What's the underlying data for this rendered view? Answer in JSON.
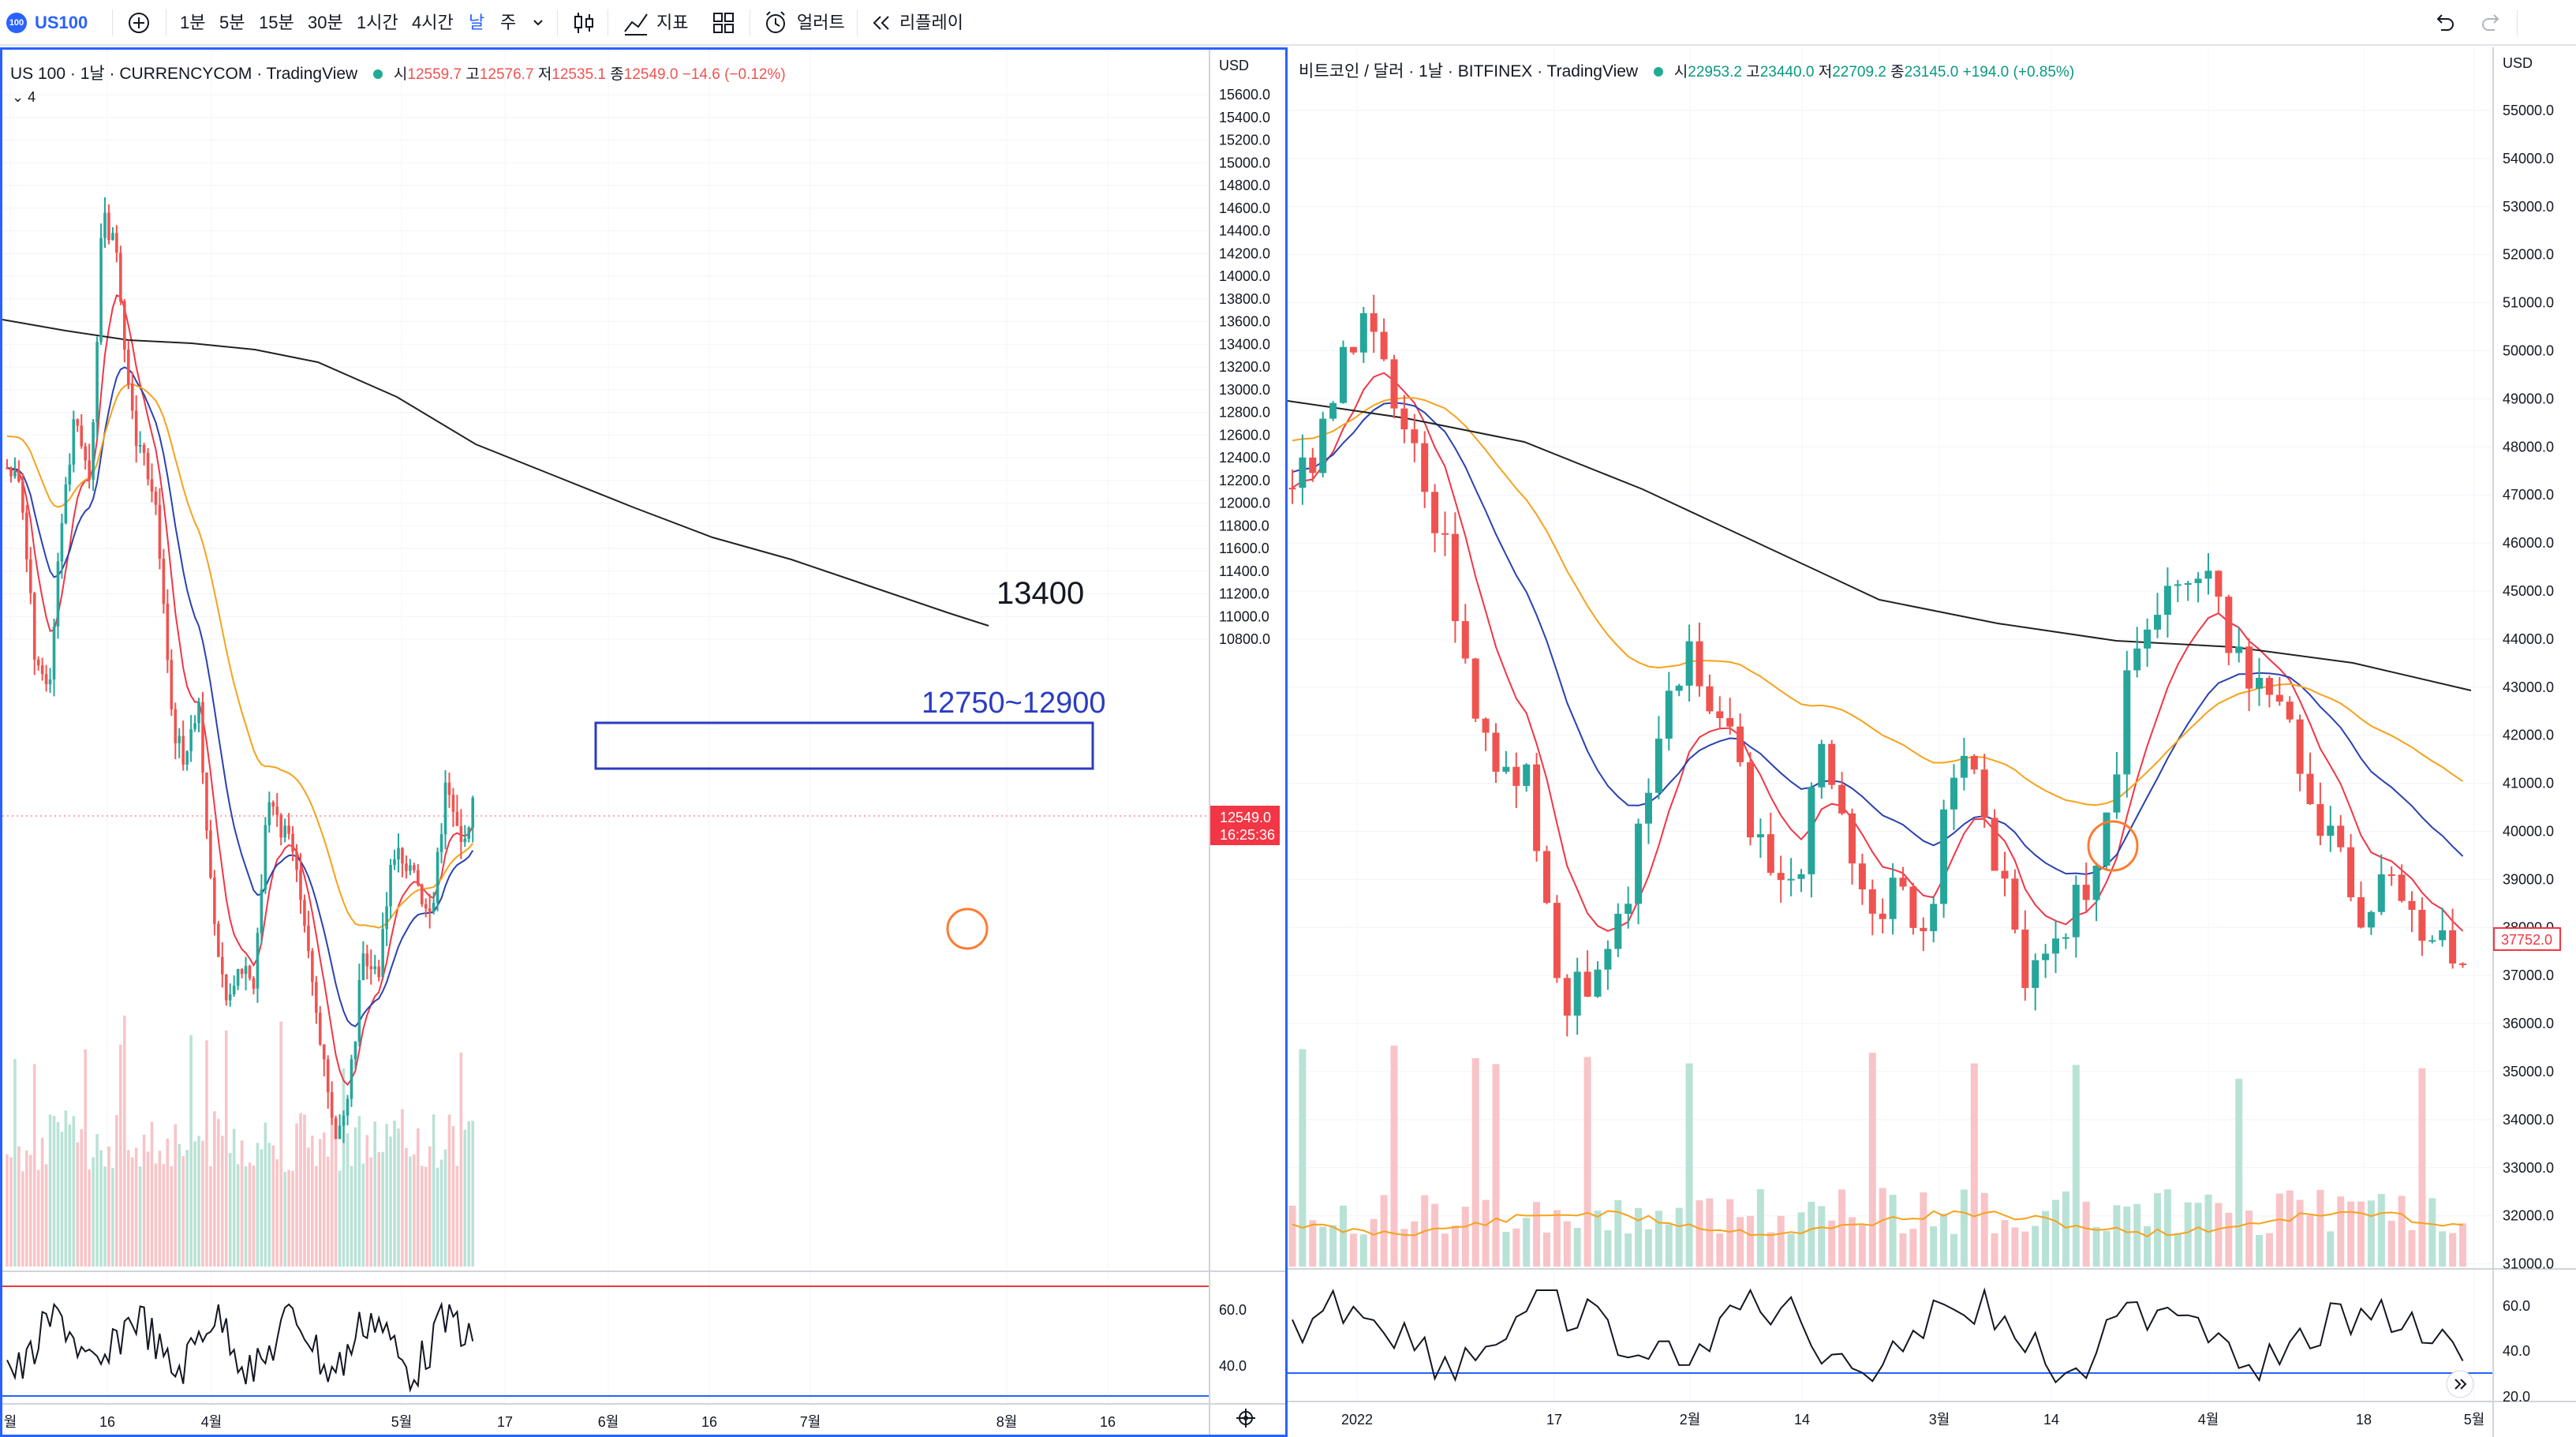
{
  "toolbar": {
    "logo_text": "100",
    "symbol": "US100",
    "add_symbol_icon": "plus-circle-icon",
    "intervals": [
      "1분",
      "5분",
      "15분",
      "30분",
      "1시간",
      "4시간",
      "날",
      "주"
    ],
    "active_interval": "날",
    "chart_type_icon": "candles-icon",
    "indicators_label": "지표",
    "layout_icon": "layout-icon",
    "alert_label": "얼러트",
    "replay_label": "리플레이",
    "undo_icon": "undo-icon",
    "redo_icon": "redo-icon"
  },
  "left_chart": {
    "legend": {
      "title": "US 100 · 1날 · CURRENCYCOM · TradingView",
      "open_label": "시",
      "open": "12559.7",
      "high_label": "고",
      "high": "12576.7",
      "low_label": "저",
      "low": "12535.1",
      "close_label": "종",
      "close": "12549.0",
      "change": "−14.6 (−0.12%)",
      "indicator_count": "4"
    },
    "currency": "USD",
    "last_price": "12549.0",
    "countdown": "16:25:36",
    "price_ticks": [
      "15600.0",
      "15400.0",
      "15200.0",
      "15000.0",
      "14800.0",
      "14600.0",
      "14400.0",
      "14200.0",
      "14000.0",
      "13800.0",
      "13600.0",
      "13400.0",
      "13200.0",
      "13000.0",
      "12800.0",
      "12600.0",
      "12400.0",
      "12200.0",
      "12000.0",
      "11800.0",
      "11600.0",
      "11400.0",
      "11200.0",
      "11000.0",
      "10800.0"
    ],
    "time_ticks": [
      "월",
      "16",
      "4월",
      "5월",
      "17",
      "6월",
      "16",
      "7월",
      "8월",
      "16"
    ],
    "rsi_ticks": [
      "60.0",
      "40.0"
    ],
    "annotation_level": "13400",
    "annotation_range": "12750~12900",
    "settings_icon": "gear-icon"
  },
  "right_chart": {
    "legend": {
      "title": "비트코인 / 달러 · 1날 · BITFINEX · TradingView",
      "open_label": "시",
      "open": "22953.2",
      "high_label": "고",
      "high": "23440.0",
      "low_label": "저",
      "low": "22709.2",
      "close_label": "종",
      "close": "23145.0",
      "change": "+194.0 (+0.85%)"
    },
    "currency": "USD",
    "last_price": "37752.0",
    "price_ticks": [
      "55000.0",
      "54000.0",
      "53000.0",
      "52000.0",
      "51000.0",
      "50000.0",
      "49000.0",
      "48000.0",
      "47000.0",
      "46000.0",
      "45000.0",
      "44000.0",
      "43000.0",
      "42000.0",
      "41000.0",
      "40000.0",
      "39000.0",
      "38000.0",
      "37000.0",
      "36000.0",
      "35000.0",
      "34000.0",
      "33000.0",
      "32000.0",
      "31000.0"
    ],
    "time_ticks": [
      "2022",
      "17",
      "2월",
      "14",
      "3월",
      "14",
      "4월",
      "18",
      "5월"
    ],
    "rsi_ticks": [
      "60.0",
      "40.0",
      "20.0"
    ],
    "scroll_icon": "double-chevron-right-icon"
  },
  "colors": {
    "up": "#26a69a",
    "down": "#ef5350",
    "ema_fast": "#f23645",
    "ema_mid": "#2a42b0",
    "ema_slow": "#f7a21b",
    "ema_long": "#222222",
    "accent": "#2962ff",
    "annotation_circle": "#ff7b2e"
  }
}
